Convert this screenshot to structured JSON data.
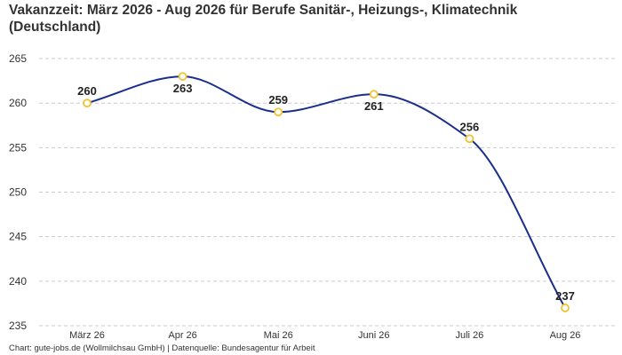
{
  "title": "Vakanzzeit: März 2026 - Aug 2026 für Berufe Sanitär-, Heizungs-, Klimatechnik (Deutschland)",
  "footer": "Chart: gute-jobs.de (Wollmilchsau GmbH) | Datenquelle: Bundesagentur für Arbeit",
  "chart_data": {
    "type": "line",
    "title": "Vakanzzeit: März 2026 - Aug 2026 für Berufe Sanitär-, Heizungs-, Klimatechnik (Deutschland)",
    "xlabel": "",
    "ylabel": "",
    "categories": [
      "März 26",
      "Apr 26",
      "Mai 26",
      "Juni 26",
      "Juli 26",
      "Aug 26"
    ],
    "series": [
      {
        "values": [
          260,
          263,
          259,
          261,
          256,
          237
        ]
      }
    ],
    "data_labels": [
      "260",
      "263",
      "259",
      "261",
      "256",
      "237"
    ],
    "ylim": [
      235,
      266
    ],
    "y_ticks": [
      235,
      240,
      245,
      250,
      255,
      260,
      265
    ],
    "grid": true,
    "legend": "none",
    "colors": {
      "line": "#1a2f8c",
      "marker_edge": "#f2c230",
      "marker_fill": "#ffffff",
      "grid": "#cccccc",
      "text": "#333333"
    }
  }
}
